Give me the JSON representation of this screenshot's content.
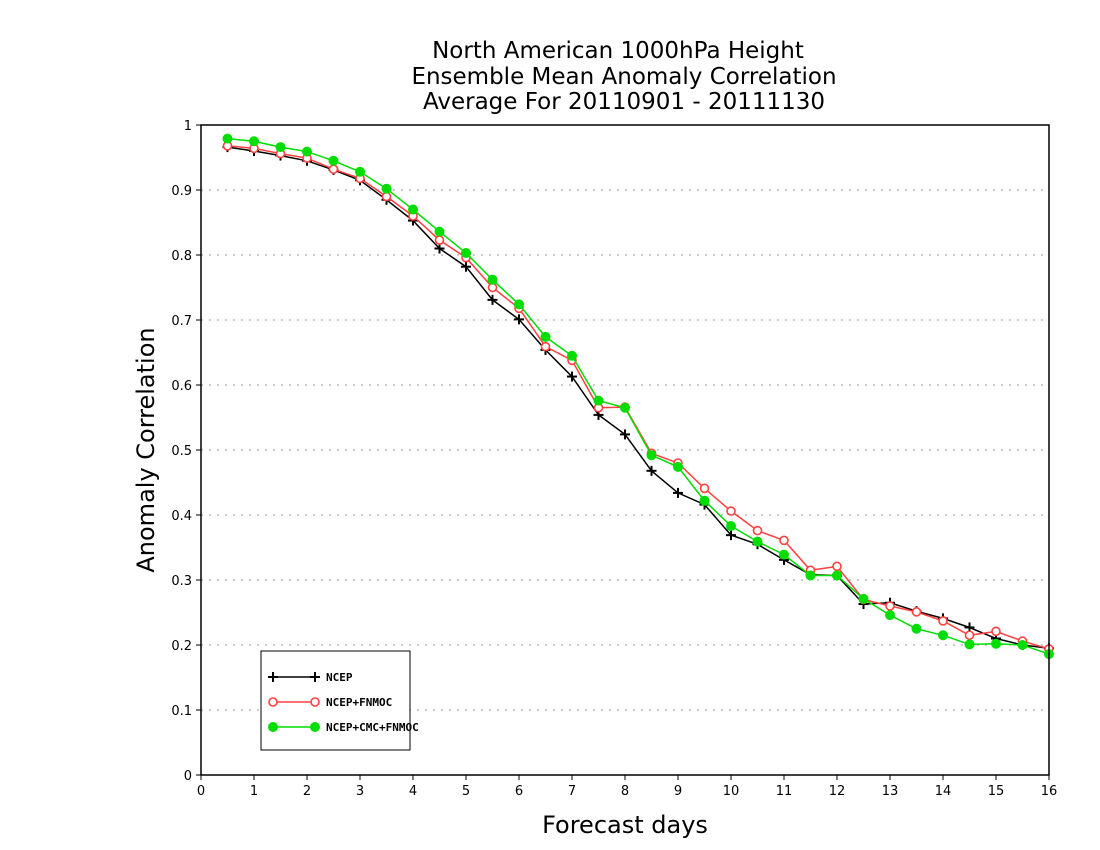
{
  "chart_data": {
    "type": "line",
    "title": [
      "North American 1000hPa Height",
      "Ensemble Mean Anomaly Correlation",
      "Average For 20110901 - 20111130"
    ],
    "xlabel": "Forecast days",
    "ylabel": "Anomaly Correlation",
    "xlim": [
      0,
      16
    ],
    "ylim": [
      0,
      1
    ],
    "xticks": [
      "0",
      "1",
      "2",
      "3",
      "4",
      "5",
      "6",
      "7",
      "8",
      "9",
      "10",
      "11",
      "12",
      "13",
      "14",
      "15",
      "16"
    ],
    "yticks": [
      "0",
      "0.1",
      "0.2",
      "0.3",
      "0.4",
      "0.5",
      "0.6",
      "0.7",
      "0.8",
      "0.9",
      "1"
    ],
    "grid": "horizontal dotted",
    "legend_position": "bottom-left",
    "x": [
      0.5,
      1,
      1.5,
      2,
      2.5,
      3,
      3.5,
      4,
      4.5,
      5,
      5.5,
      6,
      6.5,
      7,
      7.5,
      8,
      8.5,
      9,
      9.5,
      10,
      10.5,
      11,
      11.5,
      12,
      12.5,
      13,
      13.5,
      14,
      14.5,
      15,
      15.5,
      16
    ],
    "series": [
      {
        "name": "NCEP",
        "color": "#000000",
        "marker": "plus",
        "values": [
          0.966,
          0.96,
          0.953,
          0.945,
          0.931,
          0.915,
          0.885,
          0.853,
          0.81,
          0.782,
          0.731,
          0.701,
          0.654,
          0.613,
          0.554,
          0.524,
          0.468,
          0.434,
          0.416,
          0.369,
          0.355,
          0.331,
          0.308,
          0.307,
          0.263,
          0.265,
          0.252,
          0.241,
          0.227,
          0.21,
          0.2,
          0.195
        ]
      },
      {
        "name": "NCEP+FNMOC",
        "color": "#ff4040",
        "marker": "open-circle",
        "values": [
          0.968,
          0.964,
          0.956,
          0.949,
          0.932,
          0.918,
          0.89,
          0.86,
          0.823,
          0.796,
          0.75,
          0.718,
          0.659,
          0.638,
          0.565,
          0.566,
          0.495,
          0.48,
          0.441,
          0.406,
          0.376,
          0.361,
          0.315,
          0.321,
          0.27,
          0.26,
          0.251,
          0.237,
          0.215,
          0.221,
          0.206,
          0.194
        ]
      },
      {
        "name": "NCEP+CMC+FNMOC",
        "color": "#00dd00",
        "marker": "filled-circle",
        "values": [
          0.979,
          0.975,
          0.966,
          0.959,
          0.945,
          0.928,
          0.902,
          0.87,
          0.836,
          0.803,
          0.762,
          0.724,
          0.674,
          0.645,
          0.576,
          0.565,
          0.492,
          0.474,
          0.422,
          0.383,
          0.359,
          0.339,
          0.307,
          0.307,
          0.271,
          0.246,
          0.225,
          0.215,
          0.201,
          0.202,
          0.2,
          0.186
        ]
      }
    ]
  }
}
